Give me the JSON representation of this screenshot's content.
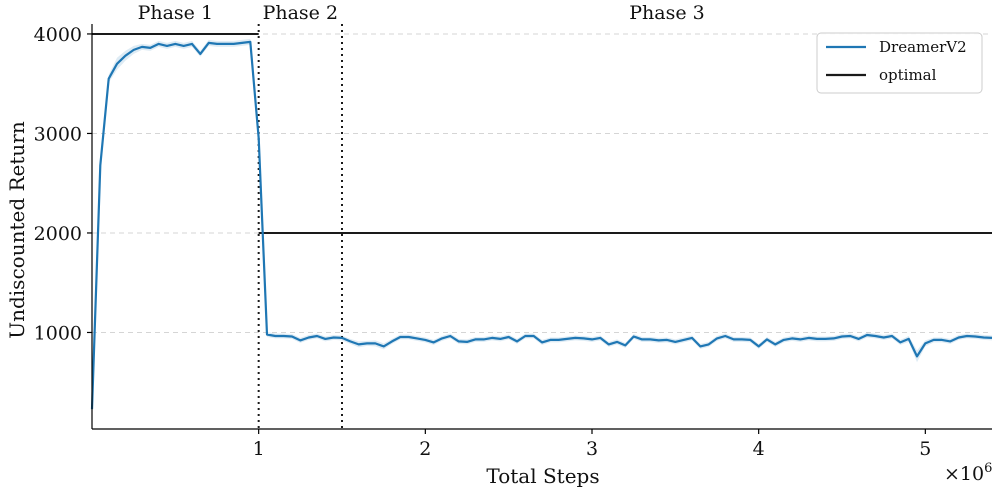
{
  "chart_data": {
    "type": "line",
    "title": "",
    "xlabel": "Total Steps",
    "ylabel": "Undiscounted Return",
    "x_multiplier_label": "×10",
    "x_multiplier_exponent": "6",
    "xlim": [
      0,
      5400000
    ],
    "ylim": [
      30,
      4100
    ],
    "xticks": [
      1000000,
      2000000,
      3000000,
      4000000,
      5000000
    ],
    "xtick_labels": [
      "1",
      "2",
      "3",
      "4",
      "5"
    ],
    "yticks": [
      1000,
      2000,
      3000,
      4000
    ],
    "ytick_labels": [
      "1000",
      "2000",
      "3000",
      "4000"
    ],
    "grid": "horizontal-dashed",
    "legend_position": "top-right",
    "phases": [
      {
        "label": "Phase 1",
        "start": 0,
        "end": 1000000
      },
      {
        "label": "Phase 2",
        "start": 1000000,
        "end": 1500000
      },
      {
        "label": "Phase 3",
        "start": 1500000,
        "end": 5400000
      }
    ],
    "phase_boundaries": [
      1000000,
      1500000
    ],
    "series": [
      {
        "name": "DreamerV2",
        "color": "#1f77b4",
        "x": [
          0,
          50000,
          100000,
          150000,
          200000,
          250000,
          300000,
          350000,
          400000,
          450000,
          500000,
          550000,
          600000,
          650000,
          700000,
          750000,
          800000,
          850000,
          900000,
          950000,
          1000000,
          1050000,
          1100000,
          1150000,
          1200000,
          1250000,
          1300000,
          1350000,
          1400000,
          1450000,
          1500000,
          1550000,
          1600000,
          1650000,
          1700000,
          1750000,
          1800000,
          1850000,
          1900000,
          1950000,
          2000000,
          2050000,
          2100000,
          2150000,
          2200000,
          2250000,
          2300000,
          2350000,
          2400000,
          2450000,
          2500000,
          2550000,
          2600000,
          2650000,
          2700000,
          2750000,
          2800000,
          2850000,
          2900000,
          2950000,
          3000000,
          3050000,
          3100000,
          3150000,
          3200000,
          3250000,
          3300000,
          3350000,
          3400000,
          3450000,
          3500000,
          3550000,
          3600000,
          3650000,
          3700000,
          3750000,
          3800000,
          3850000,
          3900000,
          3950000,
          4000000,
          4050000,
          4100000,
          4150000,
          4200000,
          4250000,
          4300000,
          4350000,
          4400000,
          4450000,
          4500000,
          4550000,
          4600000,
          4650000,
          4700000,
          4750000,
          4800000,
          4850000,
          4900000,
          4950000,
          5000000,
          5050000,
          5100000,
          5150000,
          5200000,
          5250000,
          5300000,
          5350000,
          5400000
        ],
        "values": [
          230,
          2680,
          3550,
          3700,
          3780,
          3840,
          3870,
          3860,
          3900,
          3880,
          3900,
          3880,
          3900,
          3800,
          3910,
          3900,
          3900,
          3900,
          3910,
          3920,
          2950,
          980,
          965,
          965,
          960,
          920,
          950,
          965,
          935,
          950,
          945,
          910,
          880,
          890,
          890,
          860,
          910,
          955,
          955,
          940,
          925,
          900,
          940,
          965,
          910,
          905,
          930,
          930,
          945,
          935,
          955,
          910,
          965,
          965,
          900,
          925,
          925,
          935,
          945,
          940,
          930,
          945,
          880,
          905,
          870,
          960,
          930,
          930,
          920,
          925,
          905,
          925,
          945,
          860,
          880,
          940,
          965,
          930,
          930,
          925,
          860,
          930,
          880,
          925,
          940,
          930,
          945,
          935,
          935,
          940,
          960,
          965,
          935,
          975,
          965,
          950,
          965,
          900,
          935,
          760,
          890,
          925,
          925,
          910,
          950,
          965,
          960,
          950,
          945
        ],
        "band_lower": [
          210,
          2640,
          3510,
          3640,
          3730,
          3800,
          3840,
          3830,
          3870,
          3850,
          3870,
          3850,
          3870,
          3770,
          3880,
          3870,
          3870,
          3870,
          3880,
          3890,
          2900,
          955,
          940,
          940,
          935,
          895,
          925,
          940,
          910,
          925,
          920,
          885,
          850,
          865,
          860,
          830,
          885,
          930,
          930,
          915,
          900,
          875,
          915,
          940,
          885,
          880,
          905,
          905,
          920,
          910,
          930,
          885,
          940,
          940,
          875,
          900,
          900,
          910,
          920,
          915,
          905,
          920,
          855,
          880,
          845,
          935,
          905,
          905,
          895,
          900,
          880,
          900,
          920,
          835,
          855,
          915,
          940,
          905,
          905,
          900,
          835,
          905,
          855,
          900,
          915,
          905,
          920,
          910,
          910,
          915,
          935,
          940,
          910,
          950,
          940,
          925,
          940,
          875,
          905,
          700,
          860,
          900,
          900,
          885,
          925,
          940,
          935,
          925,
          920
        ],
        "band_upper": [
          250,
          2720,
          3590,
          3760,
          3830,
          3880,
          3900,
          3890,
          3930,
          3910,
          3930,
          3910,
          3930,
          3830,
          3940,
          3930,
          3930,
          3930,
          3940,
          3950,
          3000,
          1005,
          990,
          990,
          985,
          945,
          975,
          990,
          960,
          975,
          970,
          935,
          910,
          915,
          920,
          890,
          935,
          980,
          980,
          965,
          950,
          925,
          965,
          990,
          935,
          930,
          955,
          955,
          970,
          960,
          980,
          935,
          990,
          990,
          925,
          950,
          950,
          960,
          970,
          965,
          955,
          970,
          905,
          930,
          895,
          985,
          955,
          955,
          945,
          950,
          930,
          950,
          970,
          885,
          905,
          965,
          990,
          955,
          955,
          950,
          885,
          955,
          905,
          950,
          965,
          955,
          970,
          960,
          960,
          965,
          985,
          990,
          960,
          1000,
          990,
          975,
          990,
          925,
          965,
          820,
          920,
          950,
          950,
          935,
          975,
          990,
          985,
          975,
          970
        ]
      },
      {
        "name": "optimal",
        "color": "#1a1a1a",
        "segments": [
          {
            "x": [
              0,
              1000000
            ],
            "y": [
              4000,
              4000
            ]
          },
          {
            "x": [
              1000000,
              5400000
            ],
            "y": [
              2000,
              2000
            ]
          }
        ]
      }
    ]
  }
}
